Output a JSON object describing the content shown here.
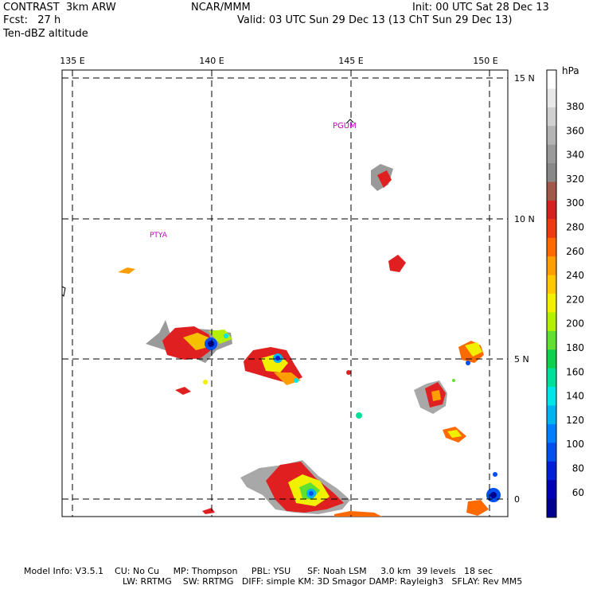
{
  "header": {
    "line1_left": "CONTRAST  3km ARW",
    "line1_mid": "NCAR/MMM",
    "line1_right": "Init: 00 UTC Sat 28 Dec 13",
    "line2_left": "Fcst:   27 h",
    "line2_right": "Valid: 03 UTC Sun 29 Dec 13 (13 ChT Sun 29 Dec 13)",
    "line3_left": "Ten-dBZ altitude"
  },
  "map": {
    "lon_labels": [
      "135 E",
      "140 E",
      "145 E",
      "150 E"
    ],
    "lat_labels": [
      "15 N",
      "10 N",
      "5 N",
      "0"
    ],
    "stations": [
      "PGUM",
      "PTYA"
    ]
  },
  "colorbar": {
    "unit": "hPa",
    "labels": [
      "380",
      "360",
      "340",
      "320",
      "300",
      "280",
      "260",
      "240",
      "220",
      "200",
      "180",
      "160",
      "140",
      "120",
      "100",
      "80",
      "60"
    ],
    "colors": [
      "#ffffff",
      "#e8e8e8",
      "#d0d0d0",
      "#b4b4b4",
      "#9a9a9a",
      "#888888",
      "#a0584a",
      "#d42020",
      "#ee3a10",
      "#ff6a00",
      "#ff9e00",
      "#ffc800",
      "#f0f000",
      "#b4f000",
      "#60e030",
      "#10d050",
      "#00e09a",
      "#00e6e6",
      "#00b4f0",
      "#0080ff",
      "#0050f0",
      "#0020d8",
      "#0000b4",
      "#000090"
    ]
  },
  "footer": {
    "line1": "Model Info: V3.5.1    CU: No Cu     MP: Thompson     PBL: YSU      SF: Noah LSM     3.0 km  39 levels   18 sec",
    "line2": "LW: RRTMG    SW: RRTMG   DIFF: simple KM: 3D Smagor DAMP: Rayleigh3   SFLAY: Rev MM5"
  }
}
